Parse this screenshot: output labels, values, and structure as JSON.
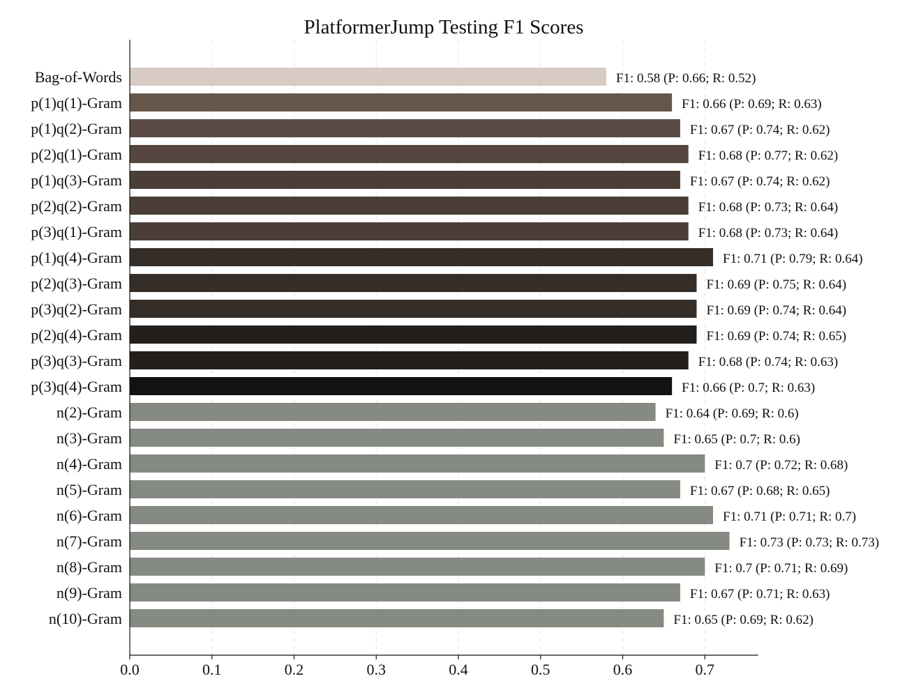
{
  "chart_data": {
    "type": "bar",
    "orientation": "horizontal",
    "title": "PlatformerJump Testing F1 Scores",
    "xlabel": "",
    "ylabel": "",
    "xlim": [
      0,
      0.765
    ],
    "xticks": [
      0.0,
      0.1,
      0.2,
      0.3,
      0.4,
      0.5,
      0.6,
      0.7
    ],
    "xtick_labels": [
      "0.0",
      "0.1",
      "0.2",
      "0.3",
      "0.4",
      "0.5",
      "0.6",
      "0.7"
    ],
    "grid": "vertical dashed",
    "categories": [
      "Bag-of-Words",
      "p(1)q(1)-Gram",
      "p(1)q(2)-Gram",
      "p(2)q(1)-Gram",
      "p(1)q(3)-Gram",
      "p(2)q(2)-Gram",
      "p(3)q(1)-Gram",
      "p(1)q(4)-Gram",
      "p(2)q(3)-Gram",
      "p(3)q(2)-Gram",
      "p(2)q(4)-Gram",
      "p(3)q(3)-Gram",
      "p(3)q(4)-Gram",
      "n(2)-Gram",
      "n(3)-Gram",
      "n(4)-Gram",
      "n(5)-Gram",
      "n(6)-Gram",
      "n(7)-Gram",
      "n(8)-Gram",
      "n(9)-Gram",
      "n(10)-Gram"
    ],
    "values": [
      0.58,
      0.66,
      0.67,
      0.68,
      0.67,
      0.68,
      0.68,
      0.71,
      0.69,
      0.69,
      0.69,
      0.68,
      0.66,
      0.64,
      0.65,
      0.7,
      0.67,
      0.71,
      0.73,
      0.7,
      0.67,
      0.65
    ],
    "data_labels": [
      "F1: 0.58 (P: 0.66; R: 0.52)",
      "F1: 0.66 (P: 0.69; R: 0.63)",
      "F1: 0.67 (P: 0.74; R: 0.62)",
      "F1: 0.68 (P: 0.77; R: 0.62)",
      "F1: 0.67 (P: 0.74; R: 0.62)",
      "F1: 0.68 (P: 0.73; R: 0.64)",
      "F1: 0.68 (P: 0.73; R: 0.64)",
      "F1: 0.71 (P: 0.79; R: 0.64)",
      "F1: 0.69 (P: 0.75; R: 0.64)",
      "F1: 0.69 (P: 0.74; R: 0.64)",
      "F1: 0.69 (P: 0.74; R: 0.65)",
      "F1: 0.68 (P: 0.74; R: 0.63)",
      "F1: 0.66 (P: 0.7; R: 0.63)",
      "F1: 0.64 (P: 0.69; R: 0.6)",
      "F1: 0.65 (P: 0.7; R: 0.6)",
      "F1: 0.7 (P: 0.72; R: 0.68)",
      "F1: 0.67 (P: 0.68; R: 0.65)",
      "F1: 0.71 (P: 0.71; R: 0.7)",
      "F1: 0.73 (P: 0.73; R: 0.73)",
      "F1: 0.7 (P: 0.71; R: 0.69)",
      "F1: 0.67 (P: 0.71; R: 0.63)",
      "F1: 0.65 (P: 0.69; R: 0.62)"
    ],
    "bar_colors": [
      "#d8cbc3",
      "#67574b",
      "#5a4c44",
      "#554740",
      "#4a3e37",
      "#4a3e37",
      "#4a3e37",
      "#352d27",
      "#352d27",
      "#352d27",
      "#221f1c",
      "#221f1c",
      "#121211",
      "#858a82",
      "#858a82",
      "#858a82",
      "#858a82",
      "#858a82",
      "#858a82",
      "#858a82",
      "#858a82",
      "#858a82"
    ]
  }
}
